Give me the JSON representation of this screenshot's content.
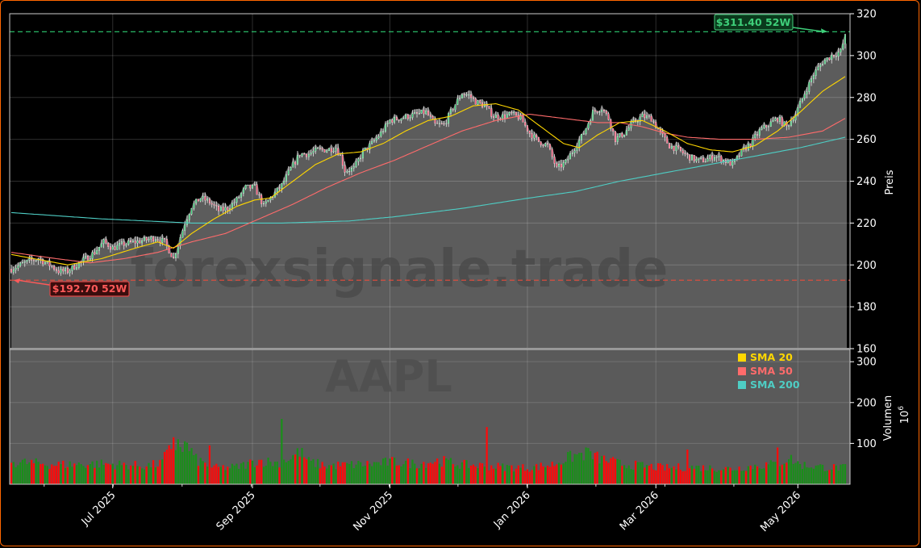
{
  "chart_data": {
    "type": "candlestick",
    "ticker": "AAPL",
    "watermark": "forexsignale.trade",
    "price_ylabel": "Preis",
    "volume_ylabel": "Volumen",
    "volume_exponent_base": "10",
    "volume_exponent_power": "6",
    "price_ylim": [
      160,
      320
    ],
    "price_ticks": [
      "160",
      "180",
      "200",
      "220",
      "240",
      "260",
      "280",
      "300",
      "320"
    ],
    "volume_ylim": [
      0,
      330
    ],
    "volume_ticks": [
      "100",
      "200",
      "300"
    ],
    "x_ticks": [
      "Jul 2025",
      "Sep 2025",
      "Nov 2025",
      "Jan 2026",
      "Mar 2026",
      "May 2026"
    ],
    "x_tick_days": [
      45,
      107,
      168,
      229,
      286,
      349
    ],
    "total_days": 371,
    "high_52w": {
      "value": 311.4,
      "label": "$311.40 52W"
    },
    "low_52w": {
      "value": 192.7,
      "label": "$192.70 52W"
    },
    "legend": [
      {
        "name": "SMA 20",
        "color": "#ffd700"
      },
      {
        "name": "SMA 50",
        "color": "#ff6b6b"
      },
      {
        "name": "SMA 200",
        "color": "#4ecdc4"
      }
    ],
    "price_keypoints": [
      [
        0,
        198
      ],
      [
        6,
        201
      ],
      [
        12,
        203
      ],
      [
        17,
        200
      ],
      [
        21,
        197
      ],
      [
        25,
        197
      ],
      [
        29,
        200
      ],
      [
        33,
        203
      ],
      [
        37,
        206
      ],
      [
        41,
        211
      ],
      [
        45,
        208
      ],
      [
        50,
        210
      ],
      [
        55,
        211
      ],
      [
        60,
        212
      ],
      [
        64,
        213
      ],
      [
        68,
        211
      ],
      [
        72,
        203
      ],
      [
        74,
        210
      ],
      [
        77,
        220
      ],
      [
        80,
        228
      ],
      [
        84,
        232
      ],
      [
        88,
        230
      ],
      [
        92,
        226
      ],
      [
        96,
        227
      ],
      [
        100,
        231
      ],
      [
        104,
        237
      ],
      [
        108,
        237
      ],
      [
        112,
        228
      ],
      [
        115,
        232
      ],
      [
        120,
        238
      ],
      [
        124,
        246
      ],
      [
        128,
        253
      ],
      [
        132,
        253
      ],
      [
        136,
        255
      ],
      [
        140,
        255
      ],
      [
        144,
        256
      ],
      [
        146,
        252
      ],
      [
        148,
        245
      ],
      [
        152,
        246
      ],
      [
        156,
        254
      ],
      [
        160,
        258
      ],
      [
        164,
        263
      ],
      [
        168,
        269
      ],
      [
        172,
        270
      ],
      [
        176,
        271
      ],
      [
        180,
        272
      ],
      [
        184,
        273
      ],
      [
        188,
        267
      ],
      [
        192,
        267
      ],
      [
        196,
        275
      ],
      [
        200,
        282
      ],
      [
        203,
        281
      ],
      [
        206,
        278
      ],
      [
        210,
        276
      ],
      [
        214,
        271
      ],
      [
        218,
        271
      ],
      [
        222,
        272
      ],
      [
        226,
        270
      ],
      [
        230,
        263
      ],
      [
        234,
        259
      ],
      [
        238,
        257
      ],
      [
        242,
        246
      ],
      [
        246,
        249
      ],
      [
        250,
        256
      ],
      [
        254,
        263
      ],
      [
        258,
        273
      ],
      [
        262,
        275
      ],
      [
        265,
        270
      ],
      [
        268,
        260
      ],
      [
        272,
        263
      ],
      [
        276,
        268
      ],
      [
        280,
        271
      ],
      [
        284,
        270
      ],
      [
        288,
        263
      ],
      [
        292,
        257
      ],
      [
        296,
        255
      ],
      [
        300,
        252
      ],
      [
        304,
        250
      ],
      [
        308,
        250
      ],
      [
        312,
        252
      ],
      [
        316,
        250
      ],
      [
        320,
        248
      ],
      [
        324,
        254
      ],
      [
        328,
        258
      ],
      [
        332,
        264
      ],
      [
        336,
        267
      ],
      [
        340,
        270
      ],
      [
        344,
        266
      ],
      [
        348,
        272
      ],
      [
        352,
        282
      ],
      [
        356,
        291
      ],
      [
        360,
        297
      ],
      [
        364,
        300
      ],
      [
        368,
        302
      ],
      [
        370,
        309
      ]
    ],
    "sma20_keypoints": [
      [
        0,
        205
      ],
      [
        15,
        202
      ],
      [
        25,
        200
      ],
      [
        40,
        203
      ],
      [
        55,
        208
      ],
      [
        65,
        211
      ],
      [
        72,
        208
      ],
      [
        80,
        215
      ],
      [
        90,
        222
      ],
      [
        100,
        228
      ],
      [
        108,
        231
      ],
      [
        115,
        232
      ],
      [
        125,
        240
      ],
      [
        135,
        248
      ],
      [
        145,
        253
      ],
      [
        155,
        254
      ],
      [
        165,
        258
      ],
      [
        175,
        264
      ],
      [
        185,
        269
      ],
      [
        195,
        271
      ],
      [
        205,
        276
      ],
      [
        215,
        277
      ],
      [
        225,
        274
      ],
      [
        235,
        266
      ],
      [
        245,
        258
      ],
      [
        252,
        256
      ],
      [
        260,
        262
      ],
      [
        270,
        268
      ],
      [
        280,
        269
      ],
      [
        290,
        264
      ],
      [
        300,
        258
      ],
      [
        310,
        255
      ],
      [
        320,
        254
      ],
      [
        330,
        257
      ],
      [
        340,
        264
      ],
      [
        350,
        273
      ],
      [
        360,
        283
      ],
      [
        370,
        290
      ]
    ],
    "sma50_keypoints": [
      [
        0,
        206
      ],
      [
        20,
        203
      ],
      [
        35,
        201
      ],
      [
        50,
        203
      ],
      [
        65,
        206
      ],
      [
        80,
        211
      ],
      [
        95,
        215
      ],
      [
        110,
        222
      ],
      [
        125,
        229
      ],
      [
        140,
        237
      ],
      [
        155,
        244
      ],
      [
        170,
        250
      ],
      [
        185,
        257
      ],
      [
        200,
        264
      ],
      [
        215,
        269
      ],
      [
        230,
        272
      ],
      [
        245,
        270
      ],
      [
        260,
        268
      ],
      [
        270,
        268
      ],
      [
        280,
        266
      ],
      [
        290,
        263
      ],
      [
        300,
        261
      ],
      [
        315,
        260
      ],
      [
        330,
        260
      ],
      [
        345,
        261
      ],
      [
        360,
        264
      ],
      [
        370,
        270
      ]
    ],
    "sma200_keypoints": [
      [
        0,
        225
      ],
      [
        40,
        222
      ],
      [
        80,
        220
      ],
      [
        120,
        220
      ],
      [
        150,
        221
      ],
      [
        170,
        223
      ],
      [
        200,
        227
      ],
      [
        230,
        232
      ],
      [
        250,
        235
      ],
      [
        270,
        240
      ],
      [
        290,
        244
      ],
      [
        310,
        248
      ],
      [
        330,
        252
      ],
      [
        350,
        256
      ],
      [
        370,
        261
      ]
    ],
    "volume_keypoints": [
      [
        0,
        55
      ],
      [
        20,
        48
      ],
      [
        40,
        50
      ],
      [
        60,
        45
      ],
      [
        66,
        50
      ],
      [
        70,
        80
      ],
      [
        72,
        100
      ],
      [
        74,
        90
      ],
      [
        78,
        95
      ],
      [
        82,
        60
      ],
      [
        90,
        40
      ],
      [
        100,
        42
      ],
      [
        110,
        58
      ],
      [
        118,
        52
      ],
      [
        124,
        65
      ],
      [
        128,
        80
      ],
      [
        132,
        55
      ],
      [
        140,
        45
      ],
      [
        160,
        50
      ],
      [
        170,
        55
      ],
      [
        180,
        50
      ],
      [
        190,
        58
      ],
      [
        200,
        48
      ],
      [
        210,
        45
      ],
      [
        220,
        42
      ],
      [
        230,
        40
      ],
      [
        240,
        48
      ],
      [
        245,
        60
      ],
      [
        250,
        70
      ],
      [
        255,
        75
      ],
      [
        260,
        65
      ],
      [
        270,
        50
      ],
      [
        280,
        45
      ],
      [
        290,
        40
      ],
      [
        300,
        42
      ],
      [
        310,
        40
      ],
      [
        320,
        38
      ],
      [
        330,
        45
      ],
      [
        340,
        50
      ],
      [
        345,
        65
      ],
      [
        350,
        48
      ],
      [
        360,
        42
      ],
      [
        370,
        40
      ]
    ],
    "volume_spikes": [
      [
        120,
        160
      ],
      [
        211,
        140
      ],
      [
        88,
        95
      ],
      [
        72,
        115
      ],
      [
        74,
        110
      ],
      [
        300,
        85
      ],
      [
        340,
        90
      ],
      [
        255,
        90
      ]
    ]
  }
}
